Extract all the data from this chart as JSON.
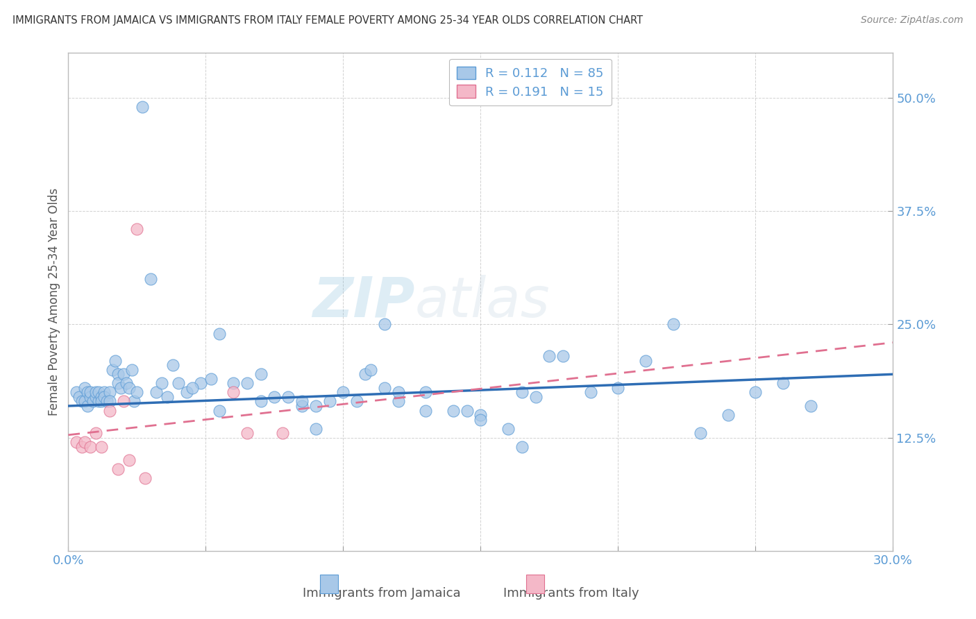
{
  "title": "IMMIGRANTS FROM JAMAICA VS IMMIGRANTS FROM ITALY FEMALE POVERTY AMONG 25-34 YEAR OLDS CORRELATION CHART",
  "source": "Source: ZipAtlas.com",
  "ylabel": "Female Poverty Among 25-34 Year Olds",
  "xlim": [
    0.0,
    0.3
  ],
  "ylim": [
    0.0,
    0.55
  ],
  "ytick_positions": [
    0.125,
    0.25,
    0.375,
    0.5
  ],
  "ytick_labels": [
    "12.5%",
    "25.0%",
    "37.5%",
    "50.0%"
  ],
  "xtick_positions": [
    0.0,
    0.05,
    0.1,
    0.15,
    0.2,
    0.25,
    0.3
  ],
  "xticklabels_show": [
    "0.0%",
    "30.0%"
  ],
  "watermark_zip": "ZIP",
  "watermark_atlas": "atlas",
  "legend_r1": "R = ",
  "legend_v1": "0.112",
  "legend_n1_label": "N = ",
  "legend_n1": "85",
  "legend_r2": "R = ",
  "legend_v2": "0.191",
  "legend_n2_label": "N = ",
  "legend_n2": "15",
  "blue_fill": "#A8C8E8",
  "blue_edge": "#5B9BD5",
  "pink_fill": "#F4B8C8",
  "pink_edge": "#E07090",
  "trend_blue": "#2E6DB4",
  "trend_pink": "#E07090",
  "axis_tick_color": "#5B9BD5",
  "title_color": "#333333",
  "source_color": "#888888",
  "ylabel_color": "#555555",
  "grid_color": "#CCCCCC",
  "jamaica_x": [
    0.003,
    0.004,
    0.005,
    0.006,
    0.006,
    0.007,
    0.007,
    0.008,
    0.008,
    0.009,
    0.01,
    0.01,
    0.011,
    0.011,
    0.012,
    0.012,
    0.013,
    0.013,
    0.014,
    0.015,
    0.015,
    0.016,
    0.017,
    0.018,
    0.018,
    0.019,
    0.02,
    0.021,
    0.022,
    0.023,
    0.024,
    0.025,
    0.027,
    0.03,
    0.032,
    0.034,
    0.036,
    0.038,
    0.04,
    0.043,
    0.048,
    0.052,
    0.055,
    0.06,
    0.065,
    0.07,
    0.075,
    0.08,
    0.085,
    0.09,
    0.095,
    0.1,
    0.108,
    0.115,
    0.12,
    0.13,
    0.14,
    0.15,
    0.16,
    0.17,
    0.175,
    0.18,
    0.19,
    0.2,
    0.21,
    0.22,
    0.23,
    0.24,
    0.25,
    0.26,
    0.27,
    0.105,
    0.115,
    0.165,
    0.045,
    0.055,
    0.07,
    0.085,
    0.09,
    0.11,
    0.12,
    0.13,
    0.145,
    0.15,
    0.165
  ],
  "jamaica_y": [
    0.175,
    0.17,
    0.165,
    0.18,
    0.165,
    0.175,
    0.16,
    0.17,
    0.175,
    0.165,
    0.17,
    0.175,
    0.165,
    0.175,
    0.17,
    0.165,
    0.175,
    0.17,
    0.165,
    0.175,
    0.165,
    0.2,
    0.21,
    0.195,
    0.185,
    0.18,
    0.195,
    0.185,
    0.18,
    0.2,
    0.165,
    0.175,
    0.49,
    0.3,
    0.175,
    0.185,
    0.17,
    0.205,
    0.185,
    0.175,
    0.185,
    0.19,
    0.24,
    0.185,
    0.185,
    0.195,
    0.17,
    0.17,
    0.16,
    0.16,
    0.165,
    0.175,
    0.195,
    0.18,
    0.165,
    0.175,
    0.155,
    0.15,
    0.135,
    0.17,
    0.215,
    0.215,
    0.175,
    0.18,
    0.21,
    0.25,
    0.13,
    0.15,
    0.175,
    0.185,
    0.16,
    0.165,
    0.25,
    0.175,
    0.18,
    0.155,
    0.165,
    0.165,
    0.135,
    0.2,
    0.175,
    0.155,
    0.155,
    0.145,
    0.115
  ],
  "italy_x": [
    0.003,
    0.005,
    0.006,
    0.008,
    0.01,
    0.012,
    0.015,
    0.018,
    0.02,
    0.022,
    0.025,
    0.028,
    0.06,
    0.065,
    0.078
  ],
  "italy_y": [
    0.12,
    0.115,
    0.12,
    0.115,
    0.13,
    0.115,
    0.155,
    0.09,
    0.165,
    0.1,
    0.355,
    0.08,
    0.175,
    0.13,
    0.13
  ],
  "blue_trend_start": 0.16,
  "blue_trend_end": 0.195,
  "pink_trend_start": 0.128,
  "pink_trend_end": 0.23
}
